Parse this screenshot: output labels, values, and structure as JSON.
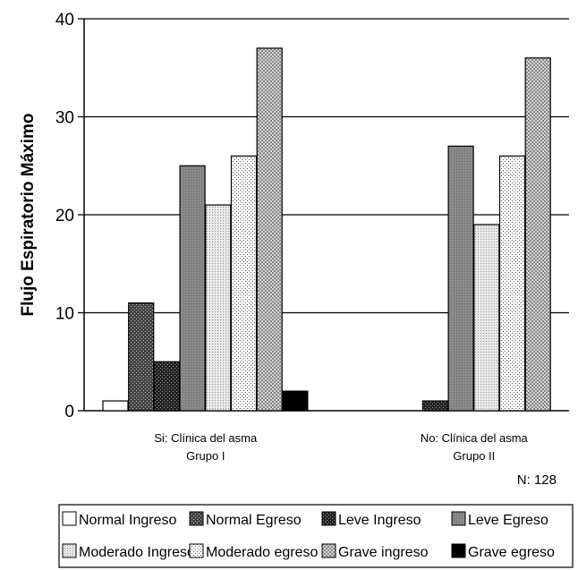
{
  "chart_data": {
    "type": "bar",
    "ylabel": "Flujo Espiratorio Máximo",
    "xlabel": "",
    "ylim": [
      0,
      40
    ],
    "yticks": [
      0,
      10,
      20,
      30,
      40
    ],
    "grid": true,
    "categories": [
      [
        "Si: Clínica del asma",
        "Grupo I"
      ],
      [
        "No: Clínica del asma",
        "Grupo II"
      ]
    ],
    "series": [
      {
        "name": "Normal Ingreso",
        "values": [
          1,
          0
        ],
        "pattern": "white"
      },
      {
        "name": "Normal Egreso",
        "values": [
          11,
          0
        ],
        "pattern": "darkdots"
      },
      {
        "name": "Leve Ingreso",
        "values": [
          5,
          1
        ],
        "pattern": "darkcross"
      },
      {
        "name": "Leve Egreso",
        "values": [
          25,
          27
        ],
        "pattern": "gray"
      },
      {
        "name": "Moderado Ingreso",
        "values": [
          21,
          19
        ],
        "pattern": "lightdots"
      },
      {
        "name": "Moderado egreso",
        "values": [
          26,
          26
        ],
        "pattern": "sparse"
      },
      {
        "name": "Grave ingreso",
        "values": [
          37,
          36
        ],
        "pattern": "check"
      },
      {
        "name": "Grave egreso",
        "values": [
          2,
          0
        ],
        "pattern": "black"
      }
    ],
    "annotation": "N: 128",
    "legend_position": "bottom"
  }
}
